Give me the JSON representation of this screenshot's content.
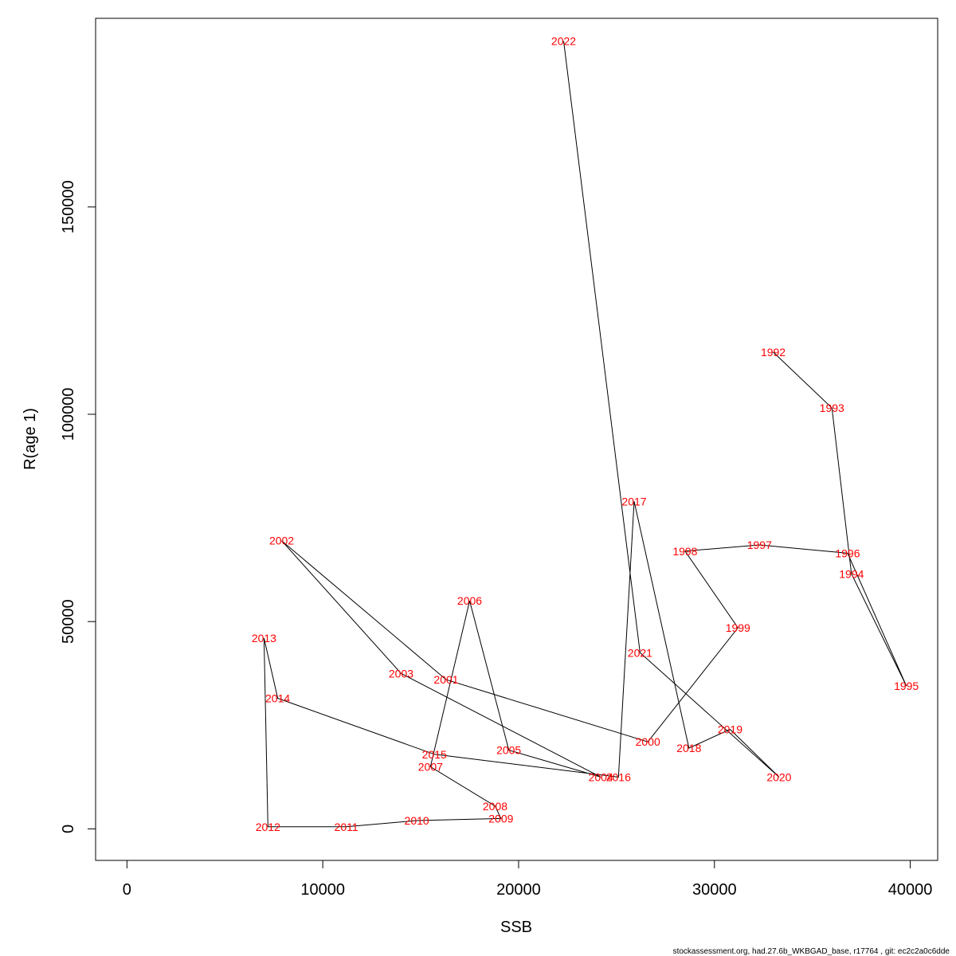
{
  "chart_data": {
    "type": "line",
    "xlabel": "SSB",
    "ylabel": "R(age 1)",
    "xlim": [
      -1600,
      41400
    ],
    "ylim": [
      -7600,
      195500
    ],
    "xticks": [
      0,
      10000,
      20000,
      30000,
      40000
    ],
    "xtick_labels": [
      "0",
      "10000",
      "20000",
      "30000",
      "40000"
    ],
    "yticks": [
      0,
      50000,
      100000,
      150000
    ],
    "ytick_labels": [
      "0",
      "50000",
      "100000",
      "150000"
    ],
    "grid": false,
    "legend": "none",
    "line_color": "#000000",
    "label_color": "#ff0000",
    "points": [
      {
        "year": "1992",
        "ssb": 33000,
        "r": 115000
      },
      {
        "year": "1993",
        "ssb": 36000,
        "r": 101500
      },
      {
        "year": "1994",
        "ssb": 37000,
        "r": 61500
      },
      {
        "year": "1995",
        "ssb": 39800,
        "r": 34500
      },
      {
        "year": "1996",
        "ssb": 36800,
        "r": 66500
      },
      {
        "year": "1997",
        "ssb": 32300,
        "r": 68500
      },
      {
        "year": "1998",
        "ssb": 28500,
        "r": 67000
      },
      {
        "year": "1999",
        "ssb": 31200,
        "r": 48500
      },
      {
        "year": "2000",
        "ssb": 26600,
        "r": 21000
      },
      {
        "year": "2001",
        "ssb": 16300,
        "r": 36000
      },
      {
        "year": "2002",
        "ssb": 7900,
        "r": 69500
      },
      {
        "year": "2003",
        "ssb": 14000,
        "r": 37500
      },
      {
        "year": "2004",
        "ssb": 24200,
        "r": 12500
      },
      {
        "year": "2005",
        "ssb": 19500,
        "r": 19000
      },
      {
        "year": "2006",
        "ssb": 17500,
        "r": 55000
      },
      {
        "year": "2007",
        "ssb": 15500,
        "r": 15000
      },
      {
        "year": "2008",
        "ssb": 18800,
        "r": 5500
      },
      {
        "year": "2009",
        "ssb": 19100,
        "r": 2500
      },
      {
        "year": "2010",
        "ssb": 14800,
        "r": 2000
      },
      {
        "year": "2011",
        "ssb": 11200,
        "r": 500
      },
      {
        "year": "2012",
        "ssb": 7200,
        "r": 500
      },
      {
        "year": "2013",
        "ssb": 7000,
        "r": 46000
      },
      {
        "year": "2014",
        "ssb": 7700,
        "r": 31500
      },
      {
        "year": "2015",
        "ssb": 15700,
        "r": 18000
      },
      {
        "year": "2016",
        "ssb": 25100,
        "r": 12500
      },
      {
        "year": "2017",
        "ssb": 25900,
        "r": 79000
      },
      {
        "year": "2018",
        "ssb": 28700,
        "r": 19500
      },
      {
        "year": "2019",
        "ssb": 30800,
        "r": 24000
      },
      {
        "year": "2020",
        "ssb": 33300,
        "r": 12500
      },
      {
        "year": "2021",
        "ssb": 26200,
        "r": 42500
      },
      {
        "year": "2022",
        "ssb": 22300,
        "r": 190000
      }
    ]
  },
  "footer_text": "stockassessment.org, had.27.6b_WKBGAD_base, r17764 , git: ec2c2a0c6dde"
}
